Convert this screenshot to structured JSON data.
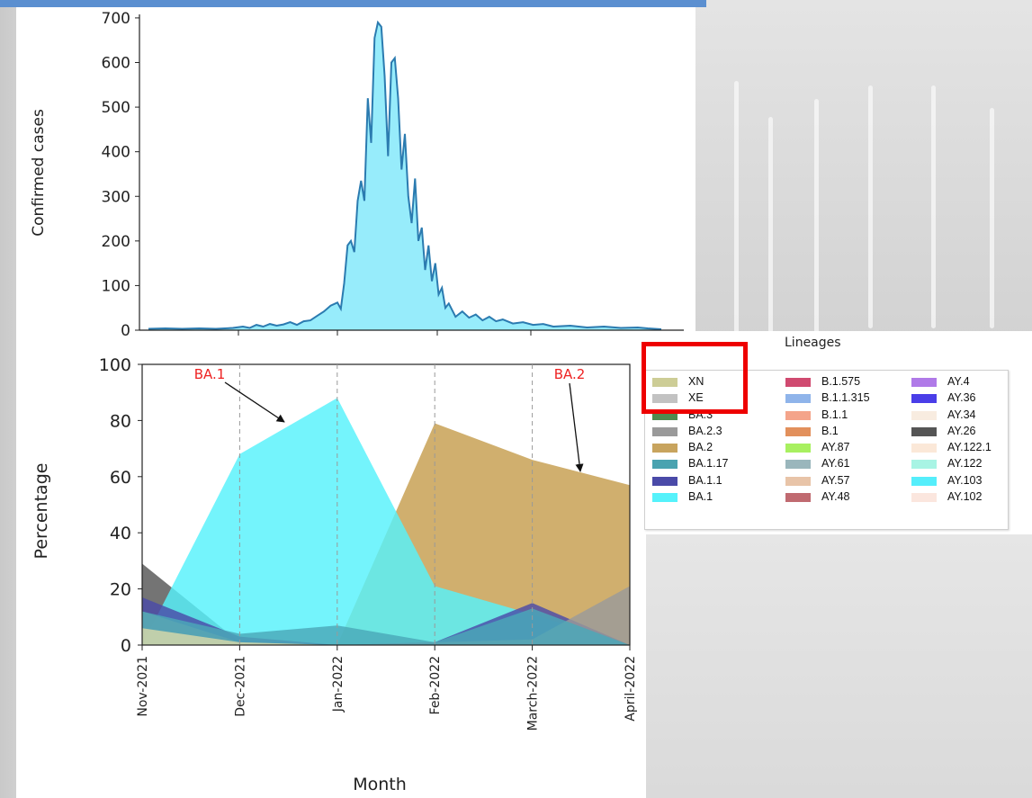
{
  "chart_data": [
    {
      "type": "area",
      "ylabel": "Confirmed cases",
      "ylim": [
        0,
        720
      ],
      "yticks": [
        0,
        100,
        200,
        300,
        400,
        500,
        600,
        700
      ],
      "x_span_days": [
        0,
        152
      ],
      "month_boundaries_days": [
        0,
        30,
        61,
        92,
        120,
        151
      ],
      "values": [
        {
          "day": 0,
          "y": 3
        },
        {
          "day": 5,
          "y": 4
        },
        {
          "day": 10,
          "y": 3
        },
        {
          "day": 15,
          "y": 4
        },
        {
          "day": 20,
          "y": 3
        },
        {
          "day": 25,
          "y": 5
        },
        {
          "day": 28,
          "y": 8
        },
        {
          "day": 30,
          "y": 5
        },
        {
          "day": 32,
          "y": 12
        },
        {
          "day": 34,
          "y": 8
        },
        {
          "day": 36,
          "y": 14
        },
        {
          "day": 38,
          "y": 10
        },
        {
          "day": 40,
          "y": 13
        },
        {
          "day": 42,
          "y": 18
        },
        {
          "day": 44,
          "y": 12
        },
        {
          "day": 46,
          "y": 20
        },
        {
          "day": 48,
          "y": 22
        },
        {
          "day": 50,
          "y": 32
        },
        {
          "day": 52,
          "y": 42
        },
        {
          "day": 54,
          "y": 55
        },
        {
          "day": 56,
          "y": 62
        },
        {
          "day": 57,
          "y": 48
        },
        {
          "day": 58,
          "y": 105
        },
        {
          "day": 59,
          "y": 190
        },
        {
          "day": 60,
          "y": 200
        },
        {
          "day": 61,
          "y": 175
        },
        {
          "day": 62,
          "y": 290
        },
        {
          "day": 63,
          "y": 335
        },
        {
          "day": 64,
          "y": 290
        },
        {
          "day": 65,
          "y": 520
        },
        {
          "day": 66,
          "y": 420
        },
        {
          "day": 67,
          "y": 655
        },
        {
          "day": 68,
          "y": 690
        },
        {
          "day": 69,
          "y": 680
        },
        {
          "day": 70,
          "y": 570
        },
        {
          "day": 71,
          "y": 390
        },
        {
          "day": 72,
          "y": 600
        },
        {
          "day": 73,
          "y": 610
        },
        {
          "day": 74,
          "y": 520
        },
        {
          "day": 75,
          "y": 360
        },
        {
          "day": 76,
          "y": 440
        },
        {
          "day": 77,
          "y": 300
        },
        {
          "day": 78,
          "y": 240
        },
        {
          "day": 79,
          "y": 340
        },
        {
          "day": 80,
          "y": 200
        },
        {
          "day": 81,
          "y": 230
        },
        {
          "day": 82,
          "y": 135
        },
        {
          "day": 83,
          "y": 190
        },
        {
          "day": 84,
          "y": 110
        },
        {
          "day": 85,
          "y": 150
        },
        {
          "day": 86,
          "y": 80
        },
        {
          "day": 87,
          "y": 95
        },
        {
          "day": 88,
          "y": 50
        },
        {
          "day": 89,
          "y": 60
        },
        {
          "day": 91,
          "y": 30
        },
        {
          "day": 93,
          "y": 42
        },
        {
          "day": 95,
          "y": 28
        },
        {
          "day": 97,
          "y": 35
        },
        {
          "day": 99,
          "y": 22
        },
        {
          "day": 101,
          "y": 30
        },
        {
          "day": 103,
          "y": 20
        },
        {
          "day": 105,
          "y": 24
        },
        {
          "day": 108,
          "y": 15
        },
        {
          "day": 111,
          "y": 18
        },
        {
          "day": 114,
          "y": 12
        },
        {
          "day": 117,
          "y": 14
        },
        {
          "day": 120,
          "y": 8
        },
        {
          "day": 125,
          "y": 10
        },
        {
          "day": 130,
          "y": 6
        },
        {
          "day": 135,
          "y": 8
        },
        {
          "day": 140,
          "y": 5
        },
        {
          "day": 145,
          "y": 6
        },
        {
          "day": 148,
          "y": 4
        },
        {
          "day": 152,
          "y": 2
        }
      ],
      "colors": {
        "fill": "#97ecfb",
        "line": "#2b7bb0"
      }
    },
    {
      "type": "area",
      "xlabel": "Month",
      "ylabel": "Percentage",
      "ylim": [
        0,
        100
      ],
      "yticks": [
        0,
        20,
        40,
        60,
        80,
        100
      ],
      "categories": [
        "Nov-2021",
        "Dec-2021",
        "Jan-2022",
        "Feb-2022",
        "March-2022",
        "April-2022"
      ],
      "series": [
        {
          "name": "AY.26",
          "color": "#555555",
          "values": [
            29,
            1,
            0,
            0,
            0,
            0
          ]
        },
        {
          "name": "BA.2",
          "color": "#c9a45a",
          "values": [
            0,
            0,
            0,
            79,
            66,
            57
          ]
        },
        {
          "name": "BA.1",
          "color": "#55f2fb",
          "values": [
            0,
            68,
            88,
            21,
            11,
            0
          ]
        },
        {
          "name": "AY.122",
          "color": "#8fe8d0",
          "values": [
            0,
            0,
            0,
            0,
            0,
            0
          ]
        },
        {
          "name": "BA.1.1",
          "color": "#4a4aa8",
          "values": [
            17,
            3,
            0,
            1,
            15,
            0
          ]
        },
        {
          "name": "BA.2.3",
          "color": "#9a9a9a",
          "values": [
            12,
            1,
            0,
            1,
            2,
            21
          ]
        },
        {
          "name": "BA.1.17",
          "color": "#4aa8b8",
          "values": [
            12,
            4,
            7,
            1,
            13,
            0
          ]
        },
        {
          "name": "XN",
          "color": "#d8d8a8",
          "values": [
            6,
            1,
            0,
            0,
            0,
            0
          ]
        }
      ],
      "annotations": [
        {
          "text": "BA.1",
          "color": "#ee2222",
          "target_category": "Jan-2022",
          "target_y": 78
        },
        {
          "text": "BA.2",
          "color": "#ee2222",
          "target_category": "April-2022",
          "target_y": 60
        }
      ],
      "legend": {
        "title": "Lineages",
        "placement": "right",
        "columns": [
          [
            {
              "label": "XN",
              "color": "#cdcd96"
            },
            {
              "label": "XE",
              "color": "#c2c2c2"
            },
            {
              "label": "BA.3",
              "color": "#4f8a4f"
            },
            {
              "label": "BA.2.3",
              "color": "#9a9a9a"
            },
            {
              "label": "BA.2",
              "color": "#c8a45e"
            },
            {
              "label": "BA.1.17",
              "color": "#4aa3b0"
            },
            {
              "label": "BA.1.1",
              "color": "#4a4aa8"
            },
            {
              "label": "BA.1",
              "color": "#55f2fb"
            }
          ],
          [
            {
              "label": "B.1.575",
              "color": "#d04a70"
            },
            {
              "label": "B.1.1.315",
              "color": "#8fb4ea"
            },
            {
              "label": "B.1.1",
              "color": "#f4a48a"
            },
            {
              "label": "B.1",
              "color": "#e2905c"
            },
            {
              "label": "AY.87",
              "color": "#a8f060"
            },
            {
              "label": "AY.61",
              "color": "#9ab6bc"
            },
            {
              "label": "AY.57",
              "color": "#e8c4a8"
            },
            {
              "label": "AY.48",
              "color": "#c06a70"
            }
          ],
          [
            {
              "label": "AY.4",
              "color": "#b07ae8"
            },
            {
              "label": "AY.36",
              "color": "#4a3ee8"
            },
            {
              "label": "AY.34",
              "color": "#f8ece0"
            },
            {
              "label": "AY.26",
              "color": "#555555"
            },
            {
              "label": "AY.122.1",
              "color": "#fbe8d8"
            },
            {
              "label": "AY.122",
              "color": "#a8f4e4"
            },
            {
              "label": "AY.103",
              "color": "#55eefb"
            },
            {
              "label": "AY.102",
              "color": "#fbe6de"
            }
          ]
        ]
      }
    }
  ]
}
